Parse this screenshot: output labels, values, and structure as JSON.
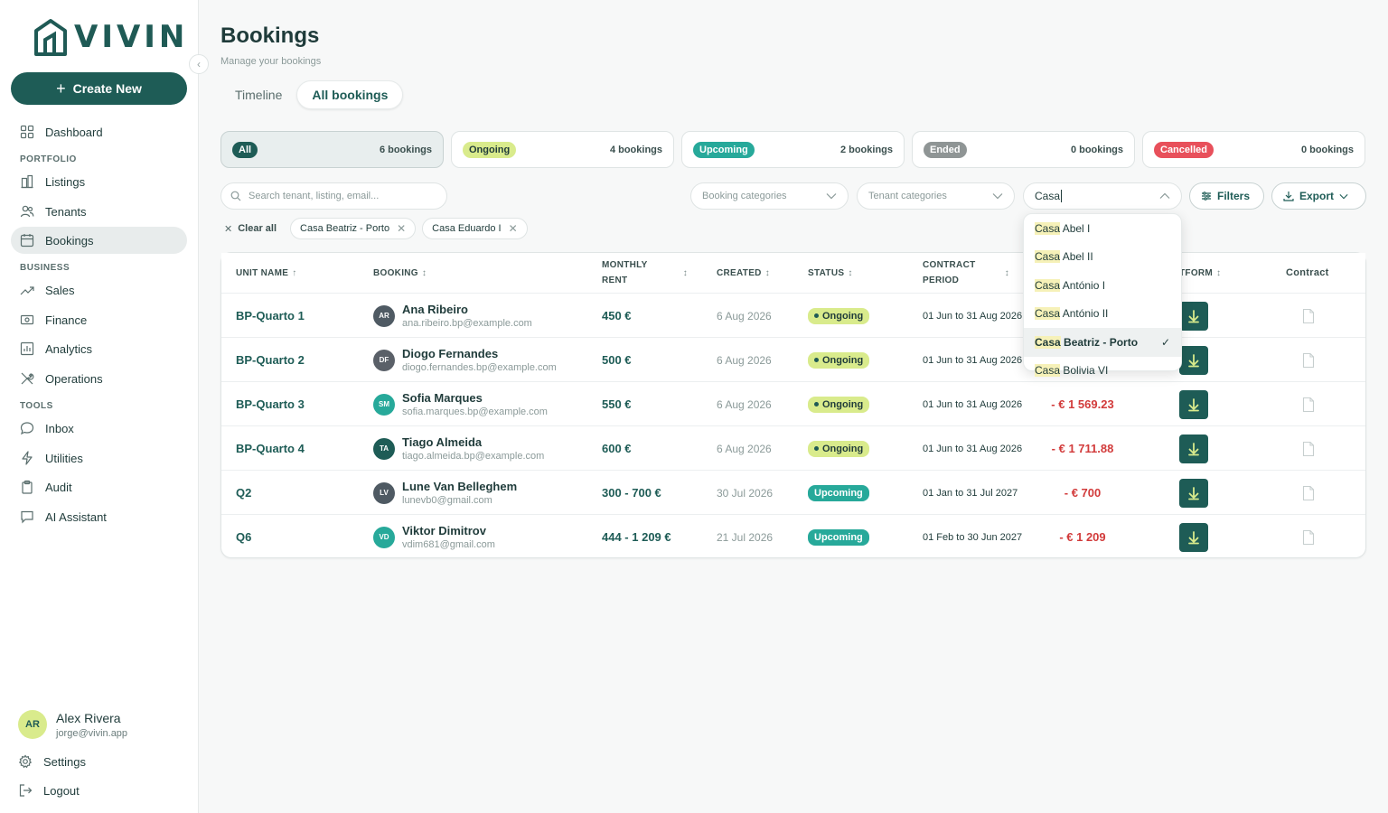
{
  "brand": {
    "name": "VIVIN"
  },
  "sidebar": {
    "create_label": "Create New",
    "sections": {
      "portfolio": "PORTFOLIO",
      "business": "BUSINESS",
      "tools": "TOOLS"
    },
    "items": {
      "dashboard": "Dashboard",
      "listings": "Listings",
      "tenants": "Tenants",
      "bookings": "Bookings",
      "sales": "Sales",
      "finance": "Finance",
      "analytics": "Analytics",
      "operations": "Operations",
      "inbox": "Inbox",
      "utilities": "Utilities",
      "audit": "Audit",
      "ai_assistant": "AI Assistant"
    },
    "user": {
      "initials": "AR",
      "name": "Alex Rivera",
      "email": "jorge@vivin.app"
    },
    "settings": "Settings",
    "logout": "Logout"
  },
  "header": {
    "title": "Bookings",
    "subtitle": "Manage your bookings"
  },
  "view_tabs": {
    "timeline": "Timeline",
    "all": "All bookings"
  },
  "status_cards": [
    {
      "label": "All",
      "count": "6 bookings",
      "pill_bg": "#1e5c56",
      "pill_fg": "#ffffff"
    },
    {
      "label": "Ongoing",
      "count": "4 bookings",
      "pill_bg": "#d9eb8c",
      "pill_fg": "#1f3b3a"
    },
    {
      "label": "Upcoming",
      "count": "2 bookings",
      "pill_bg": "#27a99a",
      "pill_fg": "#ffffff"
    },
    {
      "label": "Ended",
      "count": "0 bookings",
      "pill_bg": "#8f9595",
      "pill_fg": "#ffffff"
    },
    {
      "label": "Cancelled",
      "count": "0 bookings",
      "pill_bg": "#e8505b",
      "pill_fg": "#ffffff"
    }
  ],
  "filters": {
    "search_placeholder": "Search tenant, listing, email...",
    "booking_categories": "Booking categories",
    "tenant_categories": "Tenant categories",
    "listing_query": "Casa",
    "filters_label": "Filters",
    "export_label": "Export",
    "clear_all": "Clear all",
    "chips": [
      "Casa Beatriz - Porto",
      "Casa Eduardo I"
    ]
  },
  "dropdown": {
    "match": "Casa",
    "options": [
      {
        "rest": " Abel I",
        "selected": false
      },
      {
        "rest": " Abel II",
        "selected": false
      },
      {
        "rest": " António I",
        "selected": false
      },
      {
        "rest": " António II",
        "selected": false
      },
      {
        "rest": " Beatriz - Porto",
        "selected": true
      },
      {
        "rest": " Bolivia VI",
        "selected": false
      }
    ]
  },
  "table": {
    "headers": {
      "unit": "UNIT NAME",
      "booking": "BOOKING",
      "rent_1": "MONTHLY",
      "rent_2": "RENT",
      "created": "CREATED",
      "status": "STATUS",
      "period_1": "CONTRACT",
      "period_2": "PERIOD",
      "platform": "TFORM",
      "contract": "Contract"
    },
    "rows": [
      {
        "unit": "BP-Quarto 1",
        "initials": "AR",
        "avatar": "#4f5a63",
        "name": "Ana Ribeiro",
        "email": "ana.ribeiro.bp@example.com",
        "rent": "450 €",
        "created": "6 Aug 2026",
        "status": "Ongoing",
        "period": "01 Jun to 31 Aug 2026",
        "balance": ""
      },
      {
        "unit": "BP-Quarto 2",
        "initials": "DF",
        "avatar": "#5a6068",
        "name": "Diogo Fernandes",
        "email": "diogo.fernandes.bp@example.com",
        "rent": "500 €",
        "created": "6 Aug 2026",
        "status": "Ongoing",
        "period": "01 Jun to 31 Aug 2026",
        "balance": ""
      },
      {
        "unit": "BP-Quarto 3",
        "initials": "SM",
        "avatar": "#27a99a",
        "name": "Sofia Marques",
        "email": "sofia.marques.bp@example.com",
        "rent": "550 €",
        "created": "6 Aug 2026",
        "status": "Ongoing",
        "period": "01 Jun to 31 Aug 2026",
        "balance": "- € 1 569.23"
      },
      {
        "unit": "BP-Quarto 4",
        "initials": "TA",
        "avatar": "#1e5c56",
        "name": "Tiago Almeida",
        "email": "tiago.almeida.bp@example.com",
        "rent": "600 €",
        "created": "6 Aug 2026",
        "status": "Ongoing",
        "period": "01 Jun to 31 Aug 2026",
        "balance": "- € 1 711.88"
      },
      {
        "unit": "Q2",
        "initials": "LV",
        "avatar": "#4f5a63",
        "name": "Lune Van Belleghem",
        "email": "lunevb0@gmail.com",
        "rent": "300 - 700 €",
        "created": "30 Jul 2026",
        "status": "Upcoming",
        "period": "01 Jan to 31 Jul 2027",
        "balance": "- € 700"
      },
      {
        "unit": "Q6",
        "initials": "VD",
        "avatar": "#27a99a",
        "name": "Viktor Dimitrov",
        "email": "vdim681@gmail.com",
        "rent": "444 - 1 209 €",
        "created": "21 Jul 2026",
        "status": "Upcoming",
        "period": "01 Feb to 30 Jun 2027",
        "balance": "- € 1 209"
      }
    ]
  }
}
